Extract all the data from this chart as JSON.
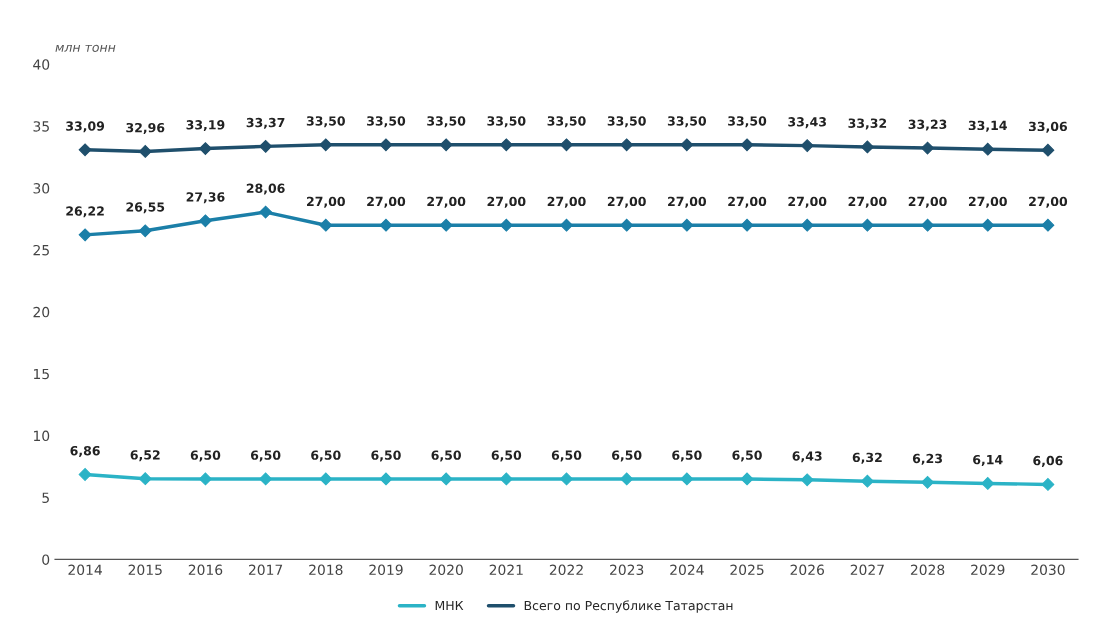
{
  "chart_data": {
    "type": "line",
    "ylabel": "млн тонн",
    "categories": [
      "2014",
      "2015",
      "2016",
      "2017",
      "2018",
      "2019",
      "2020",
      "2021",
      "2022",
      "2023",
      "2024",
      "2025",
      "2026",
      "2027",
      "2028",
      "2029",
      "2030"
    ],
    "ylim": [
      0,
      40
    ],
    "yticks": [
      0,
      5,
      10,
      15,
      20,
      25,
      30,
      35,
      40
    ],
    "grid": false,
    "legend": "bottom",
    "marker": "diamond",
    "line_style": "solid",
    "series": [
      {
        "color": "#1b7fa8",
        "values": [
          26.22,
          26.55,
          27.36,
          28.06,
          27.0,
          27.0,
          27.0,
          27.0,
          27.0,
          27.0,
          27.0,
          27.0,
          27.0,
          27.0,
          27.0,
          27.0,
          27.0
        ],
        "value_labels": [
          "26,22",
          "26,55",
          "27,36",
          "28,06",
          "27,00",
          "27,00",
          "27,00",
          "27,00",
          "27,00",
          "27,00",
          "27,00",
          "27,00",
          "27,00",
          "27,00",
          "27,00",
          "27,00",
          "27,00"
        ]
      },
      {
        "name": "МНК",
        "color": "#2bb3c6",
        "values": [
          6.86,
          6.52,
          6.5,
          6.5,
          6.5,
          6.5,
          6.5,
          6.5,
          6.5,
          6.5,
          6.5,
          6.5,
          6.43,
          6.32,
          6.23,
          6.14,
          6.06
        ],
        "value_labels": [
          "6,86",
          "6,52",
          "6,50",
          "6,50",
          "6,50",
          "6,50",
          "6,50",
          "6,50",
          "6,50",
          "6,50",
          "6,50",
          "6,50",
          "6,43",
          "6,32",
          "6,23",
          "6,14",
          "6,06"
        ]
      },
      {
        "name": "Всего по Республике Татарстан",
        "color": "#1f4f6c",
        "values": [
          33.09,
          32.96,
          33.19,
          33.37,
          33.5,
          33.5,
          33.5,
          33.5,
          33.5,
          33.5,
          33.5,
          33.5,
          33.43,
          33.32,
          33.23,
          33.14,
          33.06
        ],
        "value_labels": [
          "33,09",
          "32,96",
          "33,19",
          "33,37",
          "33,50",
          "33,50",
          "33,50",
          "33,50",
          "33,50",
          "33,50",
          "33,50",
          "33,50",
          "33,43",
          "33,32",
          "33,23",
          "33,14",
          "33,06"
        ]
      }
    ]
  }
}
